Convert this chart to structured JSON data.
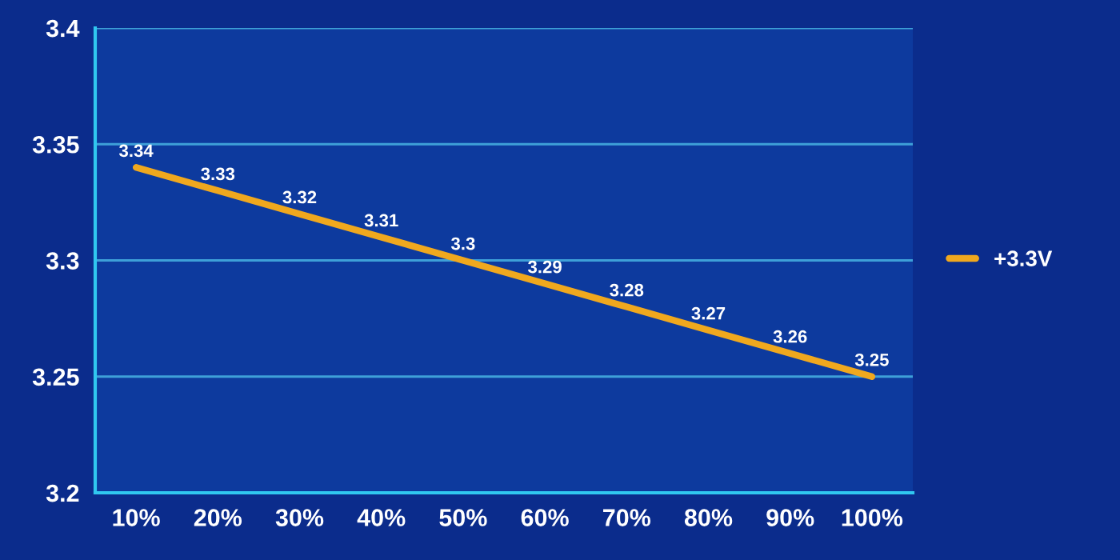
{
  "chart_data": {
    "type": "line",
    "categories": [
      "10%",
      "20%",
      "30%",
      "40%",
      "50%",
      "60%",
      "70%",
      "80%",
      "90%",
      "100%"
    ],
    "series": [
      {
        "name": "+3.3V",
        "color": "#f0a81e",
        "values": [
          3.34,
          3.33,
          3.32,
          3.31,
          3.3,
          3.29,
          3.28,
          3.27,
          3.26,
          3.25
        ]
      }
    ],
    "ylim": [
      3.2,
      3.4
    ],
    "yticks": [
      3.2,
      3.25,
      3.3,
      3.35,
      3.4
    ],
    "grid": "y",
    "legend": "right",
    "data_labels": true,
    "marker": "none",
    "line_style": "solid"
  }
}
